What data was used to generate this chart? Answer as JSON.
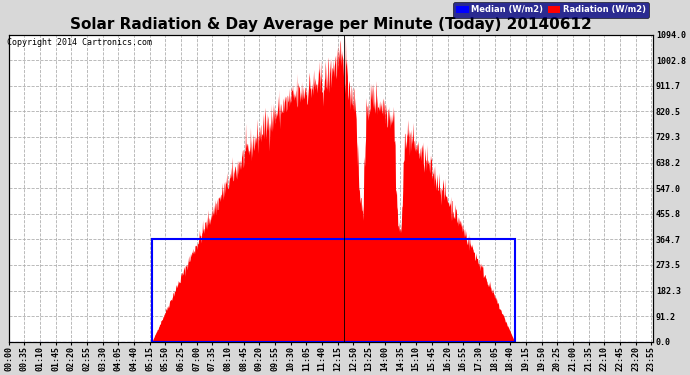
{
  "title": "Solar Radiation & Day Average per Minute (Today) 20140612",
  "copyright": "Copyright 2014 Cartronics.com",
  "ylabel_right": "W/m2",
  "legend_median": "Median (W/m2)",
  "legend_radiation": "Radiation (W/m2)",
  "yticks": [
    0.0,
    91.2,
    182.3,
    273.5,
    364.7,
    455.8,
    547.0,
    638.2,
    729.3,
    820.5,
    911.7,
    1002.8,
    1094.0
  ],
  "ymax": 1094.0,
  "background_color": "#d8d8d8",
  "plot_bg_color": "#ffffff",
  "grid_color": "#b0b0b0",
  "radiation_color": "#ff0000",
  "median_color": "#0000ff",
  "median_value": 364.7,
  "title_fontsize": 11,
  "tick_fontsize": 6,
  "minutes_per_day": 1440,
  "sunrise_minute": 320,
  "sunset_minute": 1130
}
